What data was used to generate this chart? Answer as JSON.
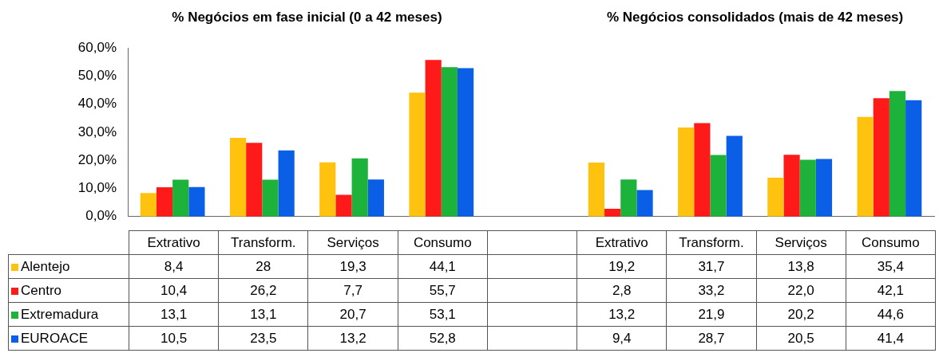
{
  "chart_data": {
    "type": "bar",
    "annotations": [
      "% Negócios em fase inicial (0 a 42 meses)",
      "% Negócios consolidados (mais de 42 meses)"
    ],
    "categories": [
      "Extrativo",
      "Transform.",
      "Serviços",
      "Consumo",
      null,
      "Extrativo",
      "Transform.",
      "Serviços",
      "Consumo"
    ],
    "series": [
      {
        "name": "Alentejo",
        "color": "#ffc30f",
        "values": [
          8.4,
          28,
          19.3,
          44.1,
          null,
          19.2,
          31.7,
          13.8,
          35.4
        ],
        "value_labels": [
          "8,4",
          "28",
          "19,3",
          "44,1",
          null,
          "19,2",
          "31,7",
          "13,8",
          "35,4"
        ]
      },
      {
        "name": "Centro",
        "color": "#ff1a1a",
        "values": [
          10.4,
          26.2,
          7.7,
          55.7,
          null,
          2.8,
          33.2,
          22.0,
          42.1
        ],
        "value_labels": [
          "10,4",
          "26,2",
          "7,7",
          "55,7",
          null,
          "2,8",
          "33,2",
          "22,0",
          "42,1"
        ]
      },
      {
        "name": "Extremadura",
        "color": "#1db33a",
        "values": [
          13.1,
          13.1,
          20.7,
          53.1,
          null,
          13.2,
          21.9,
          20.2,
          44.6
        ],
        "value_labels": [
          "13,1",
          "13,1",
          "20,7",
          "53,1",
          null,
          "13,2",
          "21,9",
          "20,2",
          "44,6"
        ]
      },
      {
        "name": "EUROACE",
        "color": "#0b5fe6",
        "values": [
          10.5,
          23.5,
          13.2,
          52.8,
          null,
          9.4,
          28.7,
          20.5,
          41.4
        ],
        "value_labels": [
          "10,5",
          "23,5",
          "13,2",
          "52,8",
          null,
          "9,4",
          "28,7",
          "20,5",
          "41,4"
        ]
      }
    ],
    "ylim": [
      0,
      60
    ],
    "yticks": [
      {
        "value": 0,
        "label": "0,0%"
      },
      {
        "value": 10,
        "label": "10,0%"
      },
      {
        "value": 20,
        "label": "20,0%"
      },
      {
        "value": 30,
        "label": "30,0%"
      },
      {
        "value": 40,
        "label": "40,0%"
      },
      {
        "value": 50,
        "label": "50,0%"
      },
      {
        "value": 60,
        "label": "60,0%"
      }
    ],
    "legend": "bottom left"
  }
}
